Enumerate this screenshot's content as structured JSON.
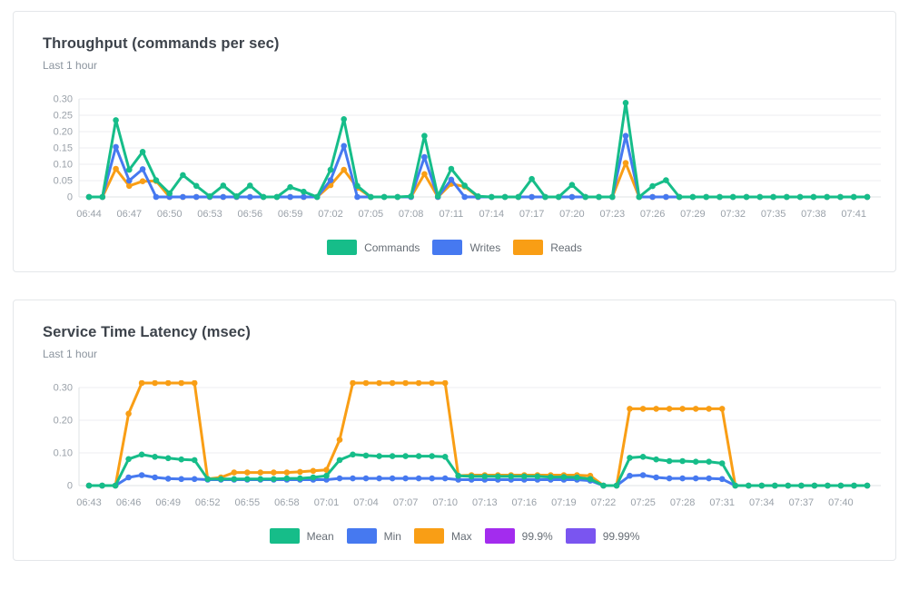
{
  "panels": [
    {
      "title": "Throughput (commands per sec)",
      "subtitle": "Last 1 hour",
      "legend": [
        {
          "label": "Commands",
          "color": "#16bd89"
        },
        {
          "label": "Writes",
          "color": "#4679f0"
        },
        {
          "label": "Reads",
          "color": "#f99e15"
        }
      ]
    },
    {
      "title": "Service Time Latency (msec)",
      "subtitle": "Last 1 hour",
      "legend": [
        {
          "label": "Mean",
          "color": "#16bd89"
        },
        {
          "label": "Min",
          "color": "#4679f0"
        },
        {
          "label": "Max",
          "color": "#f99e15"
        },
        {
          "label": "99.9%",
          "color": "#a32cee"
        },
        {
          "label": "99.99%",
          "color": "#7a55f0"
        }
      ]
    }
  ],
  "chart_data": [
    {
      "type": "line",
      "title": "Throughput (commands per sec)",
      "xlabel": "",
      "ylabel": "",
      "ylim": [
        0,
        0.3
      ],
      "yticks": [
        0,
        0.05,
        0.1,
        0.15,
        0.2,
        0.25,
        0.3
      ],
      "ytick_labels": [
        "0",
        "0.05",
        "0.10",
        "0.15",
        "0.20",
        "0.25",
        "0.30"
      ],
      "grid": true,
      "legend_position": "bottom",
      "x_label_every": 3,
      "x": [
        "06:44",
        "06:45",
        "06:46",
        "06:47",
        "06:48",
        "06:49",
        "06:50",
        "06:51",
        "06:52",
        "06:53",
        "06:54",
        "06:55",
        "06:56",
        "06:57",
        "06:58",
        "06:59",
        "07:00",
        "07:01",
        "07:02",
        "07:03",
        "07:04",
        "07:05",
        "07:06",
        "07:07",
        "07:08",
        "07:09",
        "07:10",
        "07:11",
        "07:12",
        "07:13",
        "07:14",
        "07:15",
        "07:16",
        "07:17",
        "07:18",
        "07:19",
        "07:20",
        "07:21",
        "07:22",
        "07:23",
        "07:24",
        "07:25",
        "07:26",
        "07:27",
        "07:28",
        "07:29",
        "07:30",
        "07:31",
        "07:32",
        "07:33",
        "07:34",
        "07:35",
        "07:36",
        "07:37",
        "07:38",
        "07:39",
        "07:40",
        "07:41",
        "07:42"
      ],
      "series": [
        {
          "name": "Commands",
          "color": "#16bd89",
          "values": [
            0,
            0,
            0.235,
            0.083,
            0.138,
            0.051,
            0.011,
            0.067,
            0.034,
            0.002,
            0.035,
            0.002,
            0.035,
            0,
            0,
            0.03,
            0.016,
            0,
            0.083,
            0.238,
            0.034,
            0,
            0,
            0,
            0.002,
            0.187,
            0.002,
            0.086,
            0.035,
            0.002,
            0,
            0,
            0,
            0.055,
            0,
            0,
            0.037,
            0,
            0,
            0,
            0.288,
            0,
            0.033,
            0.051,
            0,
            0,
            0,
            0,
            0,
            0,
            0,
            0,
            0,
            0,
            0,
            0,
            0,
            0,
            0
          ]
        },
        {
          "name": "Writes",
          "color": "#4679f0",
          "values": [
            0,
            0,
            0.153,
            0.05,
            0.085,
            0,
            0,
            0,
            0,
            0,
            0,
            0,
            0,
            0,
            0,
            0,
            0,
            0,
            0.051,
            0.156,
            0,
            0,
            0,
            0,
            0,
            0.122,
            0,
            0.053,
            0,
            0,
            0,
            0,
            0,
            0,
            0,
            0,
            0,
            0,
            0,
            0,
            0.187,
            0,
            0,
            0,
            0,
            0,
            0,
            0,
            0,
            0,
            0,
            0,
            0,
            0,
            0,
            0,
            0,
            0,
            0
          ]
        },
        {
          "name": "Reads",
          "color": "#f99e15",
          "values": [
            0,
            0,
            0.086,
            0.034,
            0.048,
            0.049,
            0,
            0,
            0,
            0,
            0,
            0,
            0,
            0,
            0,
            0,
            0,
            0,
            0.036,
            0.083,
            0.028,
            0,
            0,
            0,
            0,
            0.07,
            0,
            0.04,
            0.032,
            0,
            0,
            0,
            0,
            0,
            0,
            0,
            0,
            0,
            0,
            0,
            0.104,
            0,
            0,
            0,
            0,
            0,
            0,
            0,
            0,
            0,
            0,
            0,
            0,
            0,
            0,
            0,
            0,
            0,
            0
          ]
        }
      ]
    },
    {
      "type": "line",
      "title": "Service Time Latency (msec)",
      "xlabel": "",
      "ylabel": "",
      "ylim": [
        0,
        0.3
      ],
      "yticks": [
        0,
        0.1,
        0.2,
        0.3
      ],
      "ytick_labels": [
        "0",
        "0.10",
        "0.20",
        "0.30"
      ],
      "grid": true,
      "legend_position": "bottom",
      "x_label_every": 3,
      "x": [
        "06:43",
        "06:44",
        "06:45",
        "06:46",
        "06:47",
        "06:48",
        "06:49",
        "06:50",
        "06:51",
        "06:52",
        "06:53",
        "06:54",
        "06:55",
        "06:56",
        "06:57",
        "06:58",
        "06:59",
        "07:00",
        "07:01",
        "07:02",
        "07:03",
        "07:04",
        "07:05",
        "07:06",
        "07:07",
        "07:08",
        "07:09",
        "07:10",
        "07:11",
        "07:12",
        "07:13",
        "07:14",
        "07:15",
        "07:16",
        "07:17",
        "07:18",
        "07:19",
        "07:20",
        "07:21",
        "07:22",
        "07:23",
        "07:24",
        "07:25",
        "07:26",
        "07:27",
        "07:28",
        "07:29",
        "07:30",
        "07:31",
        "07:32",
        "07:33",
        "07:34",
        "07:35",
        "07:36",
        "07:37",
        "07:38",
        "07:39",
        "07:40",
        "07:41",
        "07:42"
      ],
      "series": [
        {
          "name": "Mean",
          "color": "#16bd89",
          "values": [
            0,
            0,
            0,
            0.081,
            0.095,
            0.088,
            0.084,
            0.08,
            0.078,
            0.02,
            0.02,
            0.02,
            0.02,
            0.02,
            0.02,
            0.022,
            0.022,
            0.025,
            0.03,
            0.078,
            0.095,
            0.092,
            0.09,
            0.09,
            0.09,
            0.09,
            0.09,
            0.088,
            0.03,
            0.028,
            0.028,
            0.028,
            0.028,
            0.028,
            0.028,
            0.026,
            0.026,
            0.025,
            0.02,
            0,
            0,
            0.085,
            0.088,
            0.08,
            0.075,
            0.075,
            0.073,
            0.073,
            0.068,
            0,
            0,
            0,
            0,
            0,
            0,
            0,
            0,
            0,
            0,
            0
          ]
        },
        {
          "name": "Min",
          "color": "#4679f0",
          "values": [
            0,
            0,
            0,
            0.025,
            0.032,
            0.025,
            0.021,
            0.02,
            0.02,
            0.018,
            0.018,
            0.018,
            0.018,
            0.018,
            0.018,
            0.018,
            0.018,
            0.018,
            0.018,
            0.022,
            0.022,
            0.022,
            0.022,
            0.022,
            0.022,
            0.022,
            0.022,
            0.022,
            0.018,
            0.018,
            0.018,
            0.018,
            0.018,
            0.018,
            0.018,
            0.018,
            0.018,
            0.018,
            0.015,
            0,
            0,
            0.03,
            0.032,
            0.025,
            0.022,
            0.022,
            0.022,
            0.022,
            0.02,
            0,
            0,
            0,
            0,
            0,
            0,
            0,
            0,
            0,
            0,
            0
          ]
        },
        {
          "name": "Max",
          "color": "#f99e15",
          "values": [
            0,
            0,
            0,
            0.22,
            0.314,
            0.314,
            0.314,
            0.314,
            0.314,
            0.02,
            0.025,
            0.04,
            0.04,
            0.04,
            0.04,
            0.04,
            0.042,
            0.045,
            0.048,
            0.14,
            0.314,
            0.314,
            0.314,
            0.314,
            0.314,
            0.314,
            0.314,
            0.314,
            0.03,
            0.032,
            0.032,
            0.032,
            0.032,
            0.032,
            0.032,
            0.032,
            0.032,
            0.032,
            0.03,
            0,
            0,
            0.235,
            0.235,
            0.235,
            0.235,
            0.235,
            0.235,
            0.235,
            0.235,
            0,
            0,
            0,
            0,
            0,
            0,
            0,
            0,
            0,
            0,
            0
          ]
        },
        {
          "name": "99.9%",
          "color": "#a32cee",
          "values": [],
          "note": "line not visibly distinct in chart (coincides with / hidden behind Max)"
        },
        {
          "name": "99.99%",
          "color": "#7a55f0",
          "values": [],
          "note": "line not visibly distinct in chart (coincides with / hidden behind Max)"
        }
      ]
    }
  ],
  "chart_style": {
    "grid_color": "#eceef1",
    "axis_color": "#dfe3e6",
    "tick_text_color": "#9aa1a9"
  }
}
